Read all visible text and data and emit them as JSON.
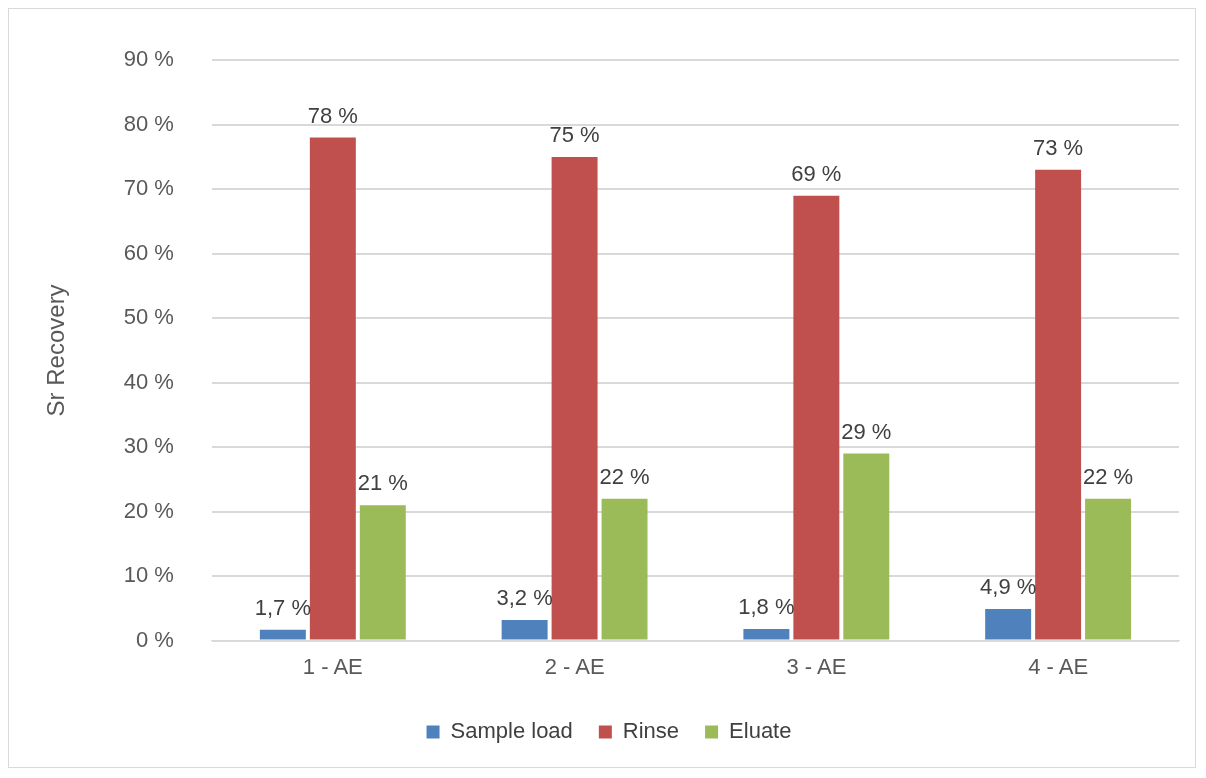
{
  "chart_data": {
    "type": "bar",
    "ylabel": "Sr Recovery",
    "categories": [
      "1 - AE",
      "2 - AE",
      "3 - AE",
      "4 - AE"
    ],
    "series": [
      {
        "name": "Sample load",
        "color": "#4f81bd",
        "values": [
          1.7,
          3.2,
          1.8,
          4.9
        ],
        "value_labels": [
          "1,7 %",
          "3,2 %",
          "1,8 %",
          "4,9 %"
        ]
      },
      {
        "name": "Rinse",
        "color": "#c0504d",
        "values": [
          78,
          75,
          69,
          73
        ],
        "value_labels": [
          "78 %",
          "75 %",
          "69 %",
          "73 %"
        ]
      },
      {
        "name": "Eluate",
        "color": "#9bbb59",
        "values": [
          21,
          22,
          29,
          22
        ],
        "value_labels": [
          "21 %",
          "22 %",
          "29 %",
          "22 %"
        ]
      }
    ],
    "ylim": [
      0,
      90
    ],
    "yticks": [
      {
        "value": 0,
        "label": "0 %"
      },
      {
        "value": 10,
        "label": "10 %"
      },
      {
        "value": 20,
        "label": "20 %"
      },
      {
        "value": 30,
        "label": "30 %"
      },
      {
        "value": 40,
        "label": "40 %"
      },
      {
        "value": 50,
        "label": "50 %"
      },
      {
        "value": 60,
        "label": "60 %"
      },
      {
        "value": 70,
        "label": "70 %"
      },
      {
        "value": 80,
        "label": "80 %"
      },
      {
        "value": 90,
        "label": "90 %"
      }
    ],
    "grid": "y",
    "legend": "bottom"
  }
}
